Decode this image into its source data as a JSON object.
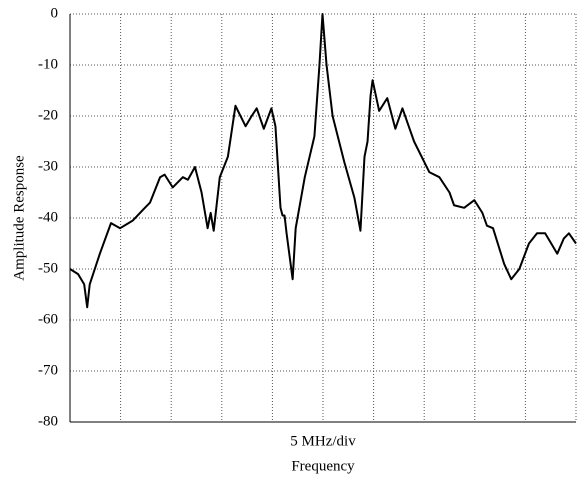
{
  "chart_data": {
    "type": "line",
    "x_unit_label": "5 MHz/div",
    "xlabel": "Frequency",
    "ylabel": "Amplitude Response",
    "x": [
      0,
      0.16,
      0.28,
      0.34,
      0.39,
      0.59,
      0.81,
      0.99,
      1.24,
      1.48,
      1.58,
      1.78,
      1.87,
      2.03,
      2.23,
      2.33,
      2.47,
      2.6,
      2.72,
      2.78,
      2.84,
      2.96,
      3.12,
      3.27,
      3.47,
      3.59,
      3.69,
      3.83,
      3.98,
      4.06,
      4.16,
      4.2,
      4.24,
      4.28,
      4.4,
      4.46,
      4.64,
      4.83,
      4.93,
      4.99,
      5.07,
      5.19,
      5.42,
      5.62,
      5.74,
      5.82,
      5.88,
      5.94,
      5.98,
      6.11,
      6.27,
      6.43,
      6.57,
      6.8,
      7.1,
      7.3,
      7.5,
      7.59,
      7.79,
      7.99,
      8.15,
      8.24,
      8.36,
      8.58,
      8.72,
      8.88,
      9.07,
      9.23,
      9.39,
      9.51,
      9.63,
      9.76,
      9.86,
      10
    ],
    "series": [
      {
        "color": "#000000",
        "values": [
          -50,
          -51,
          -53,
          -57.5,
          -53,
          -47,
          -41,
          -42,
          -40.5,
          -38,
          -37,
          -32,
          -31.5,
          -34,
          -32,
          -32.5,
          -30,
          -35,
          -42,
          -39,
          -42.5,
          -32,
          -28,
          -18,
          -22,
          -20,
          -18.5,
          -22.5,
          -18.5,
          -22,
          -38,
          -39.5,
          -39.5,
          -43,
          -52,
          -42,
          -32,
          -24,
          -10,
          0,
          -10,
          -20,
          -29,
          -36,
          -42.5,
          -28,
          -25,
          -16,
          -13,
          -19,
          -16.5,
          -22.5,
          -18.5,
          -25,
          -31,
          -32,
          -35,
          -37.5,
          -38,
          -36.5,
          -39,
          -41.5,
          -42,
          -49,
          -52,
          -50,
          -45,
          -43,
          -43,
          -45,
          -47,
          -44,
          -43,
          -45
        ]
      }
    ],
    "xlim": [
      0,
      10
    ],
    "xticks": [
      0,
      1,
      2,
      3,
      4,
      5,
      6,
      7,
      8,
      9,
      10
    ],
    "ylim": [
      -80,
      0
    ],
    "yticks": [
      0,
      -10,
      -20,
      -30,
      -40,
      -50,
      -60,
      -70,
      -80
    ],
    "grid": true
  }
}
